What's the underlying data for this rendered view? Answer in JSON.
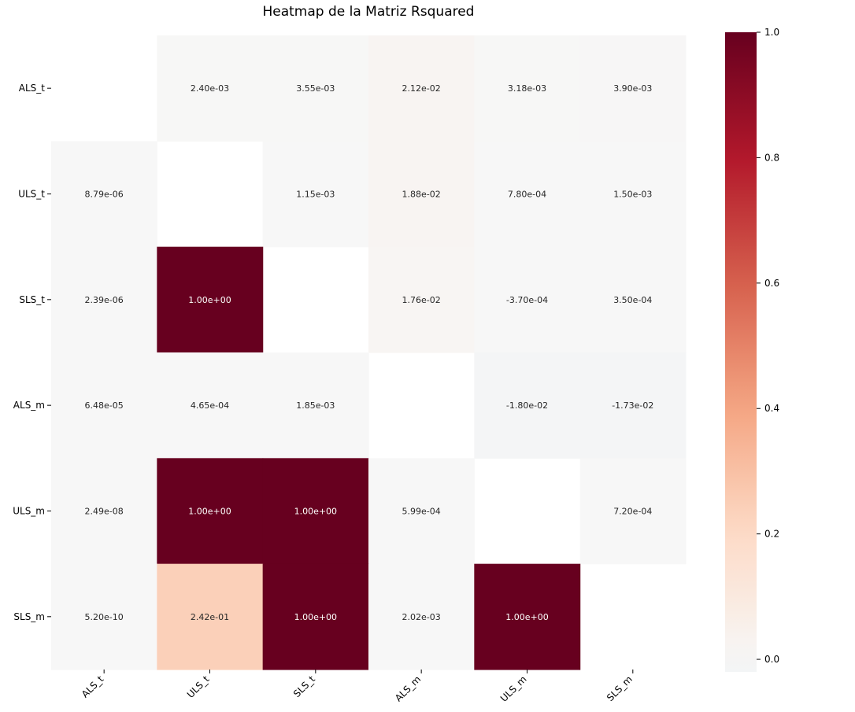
{
  "chart_data": {
    "type": "heatmap",
    "title": "Heatmap de la Matriz Rsquared",
    "row_labels": [
      "ALS_t",
      "ULS_t",
      "SLS_t",
      "ALS_m",
      "ULS_m",
      "SLS_m"
    ],
    "col_labels": [
      "ALS_t",
      "ULS_t",
      "SLS_t",
      "ALS_m",
      "ULS_m",
      "SLS_m"
    ],
    "values": [
      [
        null,
        0.0024,
        0.00355,
        0.0212,
        0.00318,
        0.0039
      ],
      [
        8.79e-06,
        null,
        0.00115,
        0.0188,
        0.00078,
        0.0015
      ],
      [
        2.39e-06,
        1.0,
        null,
        0.0176,
        -0.00037,
        0.00035
      ],
      [
        6.48e-05,
        0.000465,
        0.00185,
        null,
        -0.018,
        -0.0173
      ],
      [
        2.49e-08,
        1.0,
        1.0,
        0.000599,
        null,
        0.00072
      ],
      [
        5.2e-10,
        0.242,
        1.0,
        0.00202,
        1.0,
        null
      ]
    ],
    "annotations": [
      [
        "",
        "2.40e-03",
        "3.55e-03",
        "2.12e-02",
        "3.18e-03",
        "3.90e-03"
      ],
      [
        "8.79e-06",
        "",
        "1.15e-03",
        "1.88e-02",
        "7.80e-04",
        "1.50e-03"
      ],
      [
        "2.39e-06",
        "1.00e+00",
        "",
        "1.76e-02",
        "-3.70e-04",
        "3.50e-04"
      ],
      [
        "6.48e-05",
        "4.65e-04",
        "1.85e-03",
        "",
        "-1.80e-02",
        "-1.73e-02"
      ],
      [
        "2.49e-08",
        "1.00e+00",
        "1.00e+00",
        "5.99e-04",
        "",
        "7.20e-04"
      ],
      [
        "5.20e-10",
        "2.42e-01",
        "1.00e+00",
        "2.02e-03",
        "1.00e+00",
        ""
      ]
    ],
    "colormap": "RdBu_r",
    "vmin": -1.0,
    "vmax": 1.0,
    "colorbar": {
      "range": [
        -0.02,
        1.0
      ],
      "ticks": [
        0.0,
        0.2,
        0.4,
        0.6,
        0.8,
        1.0
      ],
      "tick_labels": [
        "0.0",
        "0.2",
        "0.4",
        "0.6",
        "0.8",
        "1.0"
      ]
    }
  }
}
